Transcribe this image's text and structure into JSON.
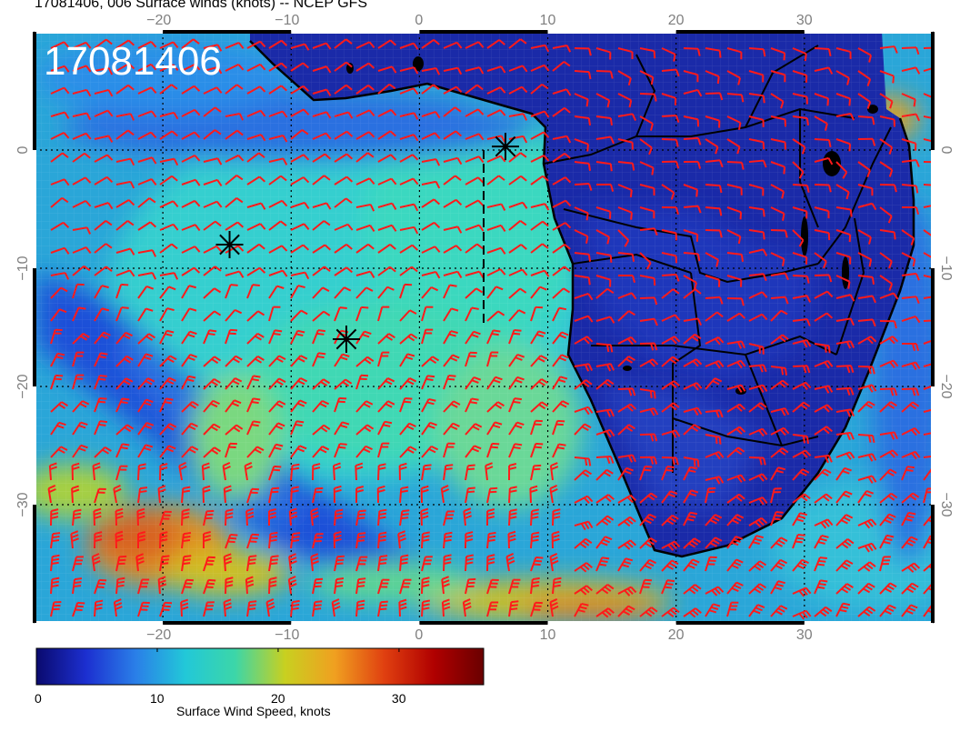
{
  "title": "17081406, 006 Surface winds (knots) -- NCEP GFS",
  "stamp": "17081406",
  "colorbar": {
    "label": "Surface Wind Speed, knots",
    "ticks": [
      "0",
      "10",
      "20",
      "30"
    ],
    "tick_values": [
      0,
      10,
      20,
      30
    ],
    "max": 37,
    "colors": [
      "#0a0a6e",
      "#1c2fd0",
      "#2a7fe8",
      "#22c8d8",
      "#3cd6a8",
      "#c8d020",
      "#f0a020",
      "#e04010",
      "#b00000",
      "#6a0000"
    ]
  },
  "axes": {
    "lon_ticks": [
      "−20",
      "−10",
      "0",
      "10",
      "20",
      "30"
    ],
    "lon_values": [
      -20,
      -10,
      0,
      10,
      20,
      30
    ],
    "lat_ticks": [
      "0",
      "−10",
      "−20",
      "−30"
    ],
    "lat_values": [
      0,
      -10,
      -20,
      -30
    ],
    "lon_range": [
      -30,
      40
    ],
    "lat_range": [
      -40,
      10
    ]
  },
  "markers": [
    {
      "lon": -14.8,
      "lat": -8.0
    },
    {
      "lon": -5.7,
      "lat": -16.0
    },
    {
      "lon": 6.7,
      "lat": 0.3
    }
  ],
  "track": {
    "lon": [
      5.0,
      5.0
    ],
    "lat": [
      0.0,
      -15.0
    ]
  },
  "colors": {
    "barb": "#ff1a1a",
    "coast": "#000000",
    "ocean": "#22c8d8",
    "land": "#1c2fb8"
  }
}
